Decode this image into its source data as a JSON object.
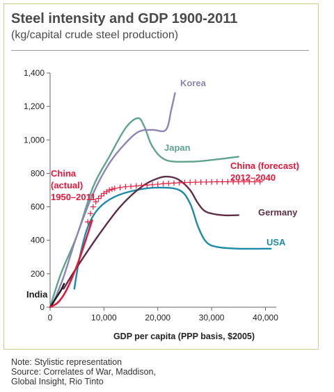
{
  "chart_data": {
    "type": "line",
    "title": "Steel intensity and GDP 1900-2011",
    "subtitle": "(kg/capital crude steel production)",
    "xlabel": "GDP per capita (PPP basis, $2005)",
    "ylabel": "",
    "xlim": [
      0,
      42000
    ],
    "ylim": [
      0,
      1400
    ],
    "xticks": [
      0,
      10000,
      20000,
      30000,
      40000
    ],
    "xtick_labels": [
      "0",
      "10,000",
      "20,000",
      "30,000",
      "40,000"
    ],
    "yticks": [
      0,
      200,
      400,
      600,
      800,
      1000,
      1200,
      1400
    ],
    "ytick_labels": [
      "0",
      "200",
      "400",
      "600",
      "800",
      "1,000",
      "1,200",
      "1,400"
    ],
    "grid": false,
    "series": [
      {
        "name": "Korea",
        "color": "#8b84b8",
        "x": [
          500,
          2500,
          5000,
          8000,
          11000,
          14000,
          16500,
          19000,
          21500,
          22500,
          23200
        ],
        "y": [
          20,
          180,
          430,
          680,
          860,
          980,
          1050,
          1060,
          1060,
          1180,
          1280
        ]
      },
      {
        "name": "Japan",
        "color": "#5ea38c",
        "x": [
          0,
          2000,
          5000,
          8000,
          11000,
          14000,
          16300,
          17500,
          19000,
          21500,
          26000,
          30000,
          35000
        ],
        "y": [
          0,
          200,
          430,
          720,
          900,
          1070,
          1130,
          1080,
          960,
          880,
          870,
          880,
          900
        ]
      },
      {
        "name": "Germany",
        "color": "#5b2d46",
        "x": [
          2500,
          5000,
          9000,
          13000,
          17000,
          20000,
          22000,
          24000,
          26000,
          27500,
          29000,
          32000,
          35000
        ],
        "y": [
          110,
          240,
          430,
          600,
          720,
          770,
          780,
          760,
          700,
          620,
          570,
          550,
          550
        ]
      },
      {
        "name": "USA",
        "color": "#1a8aa8",
        "x": [
          4500,
          5500,
          7000,
          9000,
          12000,
          16000,
          20000,
          24000,
          26000,
          27500,
          29000,
          31000,
          35000,
          41000
        ],
        "y": [
          110,
          300,
          480,
          590,
          660,
          700,
          715,
          700,
          620,
          480,
          390,
          360,
          350,
          350
        ]
      },
      {
        "name": "India",
        "color": "#1a1a1a",
        "x": [
          0,
          1000,
          2000,
          2600
        ],
        "y": [
          0,
          50,
          100,
          140
        ]
      },
      {
        "name": "China (actual) 1950–2011",
        "color": "#e8173a",
        "x": [
          0,
          1500,
          3000,
          5000,
          6500,
          7800
        ],
        "y": [
          0,
          30,
          100,
          250,
          390,
          520
        ]
      },
      {
        "name": "China (forecast) 2012–2040",
        "color": "#e8173a",
        "marker": "plus",
        "x": [
          7000,
          7500,
          8000,
          8500,
          9000,
          9500,
          10000,
          10500,
          11000,
          11500,
          12000,
          13000,
          14000,
          15000,
          16000,
          17000,
          18000,
          19000,
          20000,
          21000,
          22000,
          23000,
          24000,
          25000,
          26000,
          27000,
          28000,
          29000,
          30000,
          31000,
          32000,
          33000,
          34000,
          35000,
          36000,
          37000,
          38000,
          39000
        ],
        "y": [
          510,
          560,
          600,
          630,
          650,
          665,
          680,
          690,
          700,
          705,
          710,
          715,
          720,
          722,
          725,
          728,
          730,
          732,
          735,
          738,
          740,
          742,
          744,
          745,
          746,
          747,
          748,
          748,
          749,
          750,
          750,
          750,
          750,
          750,
          750,
          750,
          750,
          750
        ]
      }
    ],
    "series_labels": [
      {
        "lines": [
          "Korea"
        ],
        "color": "#8b84b8"
      },
      {
        "lines": [
          "Japan"
        ],
        "color": "#5ea38c"
      },
      {
        "lines": [
          "Germany"
        ],
        "color": "#5b2d46"
      },
      {
        "lines": [
          "USA"
        ],
        "color": "#1a8aa8"
      },
      {
        "lines": [
          "India"
        ],
        "color": "#1a1a1a"
      },
      {
        "lines": [
          "China",
          "(actual)",
          "1950–2011"
        ],
        "color": "#e8173a"
      },
      {
        "lines": [
          "China (forecast)",
          "2012–2040"
        ],
        "color": "#e8173a"
      }
    ]
  },
  "notes": [
    "Note: Stylistic representation",
    "Source: Correlates of War, Maddison,",
    "Global Insight, Rio Tinto"
  ]
}
